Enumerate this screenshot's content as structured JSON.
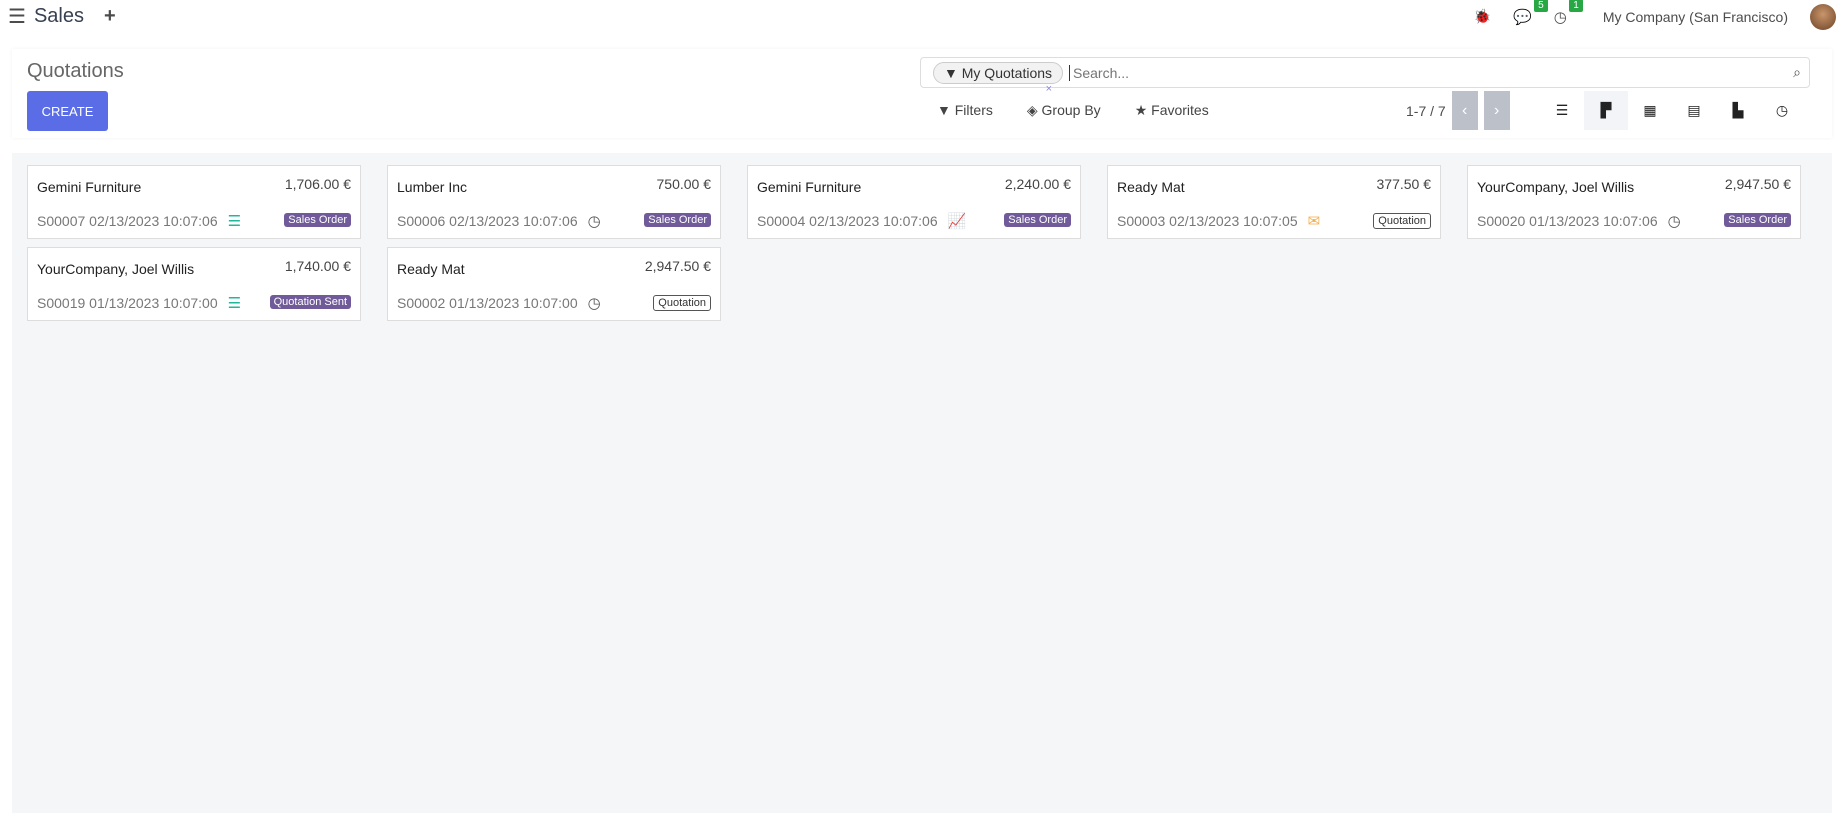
{
  "topbar": {
    "app": "Sales",
    "messages": "5",
    "activities": "1",
    "company": "My Company (San Francisco)"
  },
  "control": {
    "title": "Quotations",
    "create": "CREATE",
    "facet": "My Quotations",
    "placeholder": "Search...",
    "filters": "Filters",
    "group_by": "Group By",
    "favorites": "Favorites",
    "pager": "1-7 / 7"
  },
  "cards": [
    {
      "name": "Gemini Furniture",
      "amount": "1,706.00 €",
      "ref": "S00007 02/13/2023 10:07:06",
      "icon": "list-icon",
      "icon_color": "#21b799",
      "tag": "Sales Order",
      "outline": false
    },
    {
      "name": "Lumber Inc",
      "amount": "750.00 €",
      "ref": "S00006 02/13/2023 10:07:06",
      "icon": "clock-icon",
      "icon_color": "#555555",
      "tag": "Sales Order",
      "outline": false
    },
    {
      "name": "Gemini Furniture",
      "amount": "2,240.00 €",
      "ref": "S00004 02/13/2023 10:07:06",
      "icon": "line-chart-icon",
      "icon_color": "#21b799",
      "tag": "Sales Order",
      "outline": false
    },
    {
      "name": "Ready Mat",
      "amount": "377.50 €",
      "ref": "S00003 02/13/2023 10:07:05",
      "icon": "envelope-icon",
      "icon_color": "#f0ad4e",
      "tag": "Quotation",
      "outline": true
    },
    {
      "name": "YourCompany, Joel Willis",
      "amount": "2,947.50 €",
      "ref": "S00020 01/13/2023 10:07:06",
      "icon": "clock-icon",
      "icon_color": "#555555",
      "tag": "Sales Order",
      "outline": false
    },
    {
      "name": "YourCompany, Joel Willis",
      "amount": "1,740.00 €",
      "ref": "S00019 01/13/2023 10:07:00",
      "icon": "list-icon",
      "icon_color": "#21b799",
      "tag": "Quotation Sent",
      "outline": false
    },
    {
      "name": "Ready Mat",
      "amount": "2,947.50 €",
      "ref": "S00002 01/13/2023 10:07:00",
      "icon": "clock-icon",
      "icon_color": "#555555",
      "tag": "Quotation",
      "outline": true
    }
  ]
}
